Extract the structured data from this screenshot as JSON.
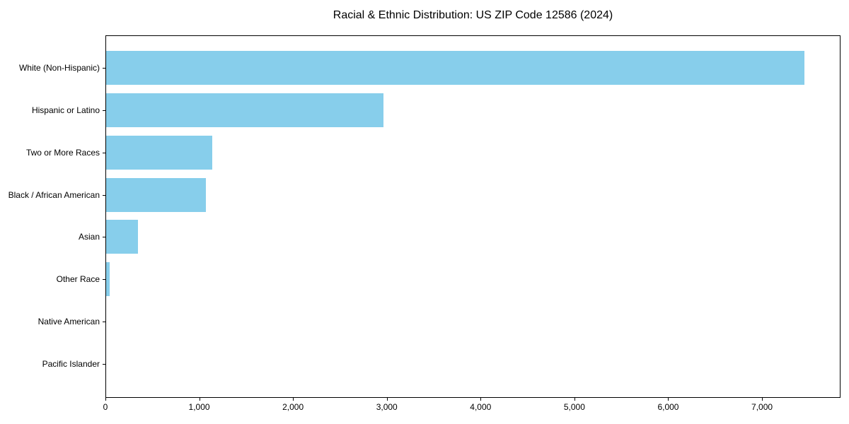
{
  "title": "Racial & Ethnic Distribution: US ZIP Code 12586 (2024)",
  "colors": {
    "bar": "#87CEEB",
    "axis": "#000000",
    "background": "#FFFFFF",
    "text": "#000000"
  },
  "chart_data": {
    "type": "bar",
    "orientation": "horizontal",
    "title": "Racial & Ethnic Distribution: US ZIP Code 12586 (2024)",
    "categories": [
      "White (Non-Hispanic)",
      "Hispanic or Latino",
      "Two or More Races",
      "Black / African American",
      "Asian",
      "Other Race",
      "Native American",
      "Pacific Islander"
    ],
    "values": [
      7445,
      2955,
      1130,
      1065,
      340,
      40,
      0,
      0
    ],
    "xlabel": "",
    "ylabel": "",
    "xlim": [
      0,
      7837
    ],
    "xticks": [
      0,
      1000,
      2000,
      3000,
      4000,
      5000,
      6000,
      7000
    ],
    "xtick_labels": [
      "0",
      "1,000",
      "2,000",
      "3,000",
      "4,000",
      "5,000",
      "6,000",
      "7,000"
    ],
    "bar_color": "#87CEEB",
    "grid": false,
    "legend": null
  }
}
